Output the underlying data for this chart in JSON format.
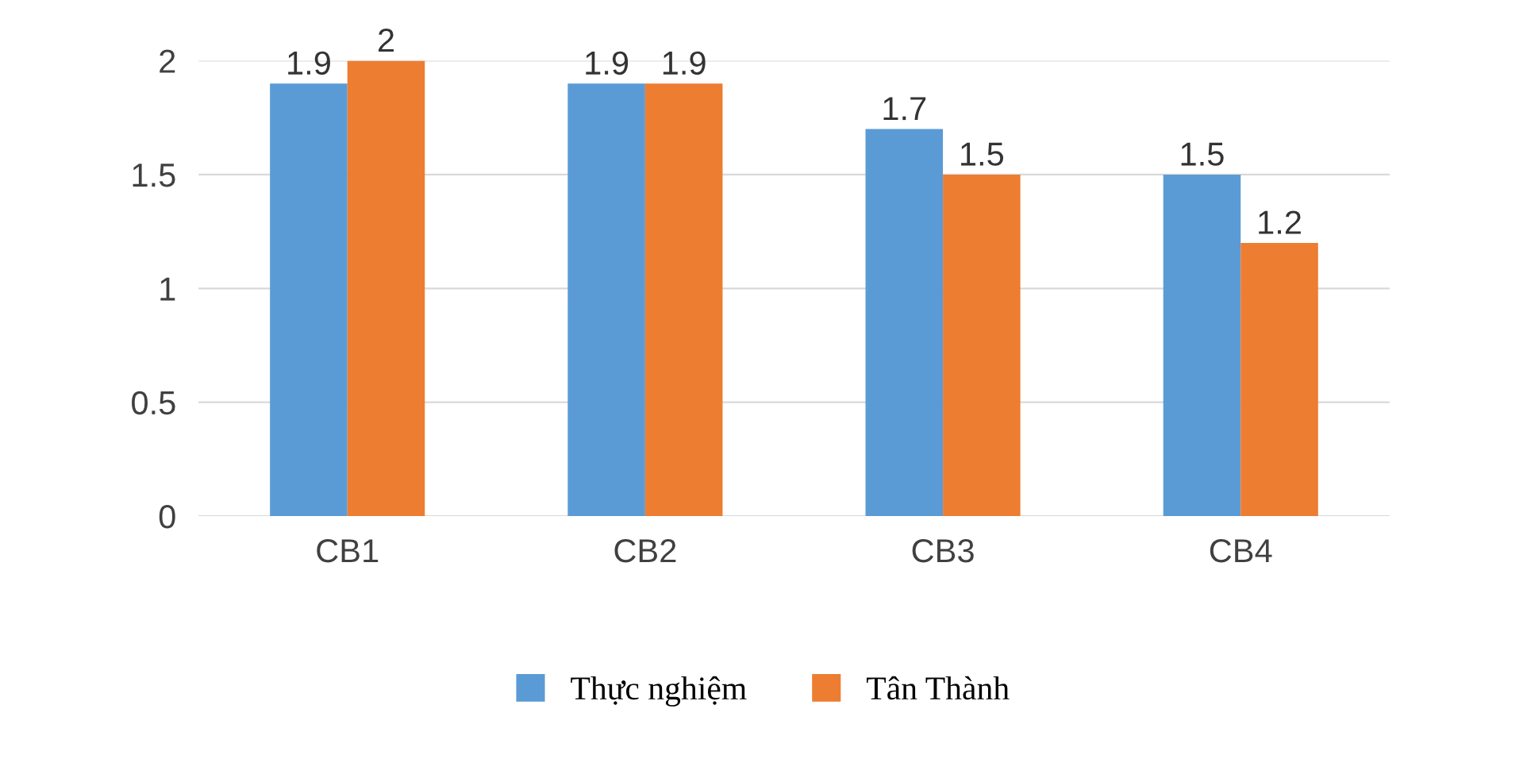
{
  "chart_data": {
    "type": "bar",
    "categories": [
      "CB1",
      "CB2",
      "CB3",
      "CB4"
    ],
    "series": [
      {
        "name": "Thực nghiệm",
        "color": "#5b9bd5",
        "values": [
          1.9,
          1.9,
          1.7,
          1.5
        ]
      },
      {
        "name": "Tân Thành",
        "color": "#ed7d31",
        "values": [
          2,
          1.9,
          1.5,
          1.2
        ]
      }
    ],
    "ylim": [
      0,
      2
    ],
    "yticks": [
      0,
      0.5,
      1,
      1.5,
      2
    ],
    "grid": "y",
    "legend": "bottom",
    "data_labels": true
  }
}
